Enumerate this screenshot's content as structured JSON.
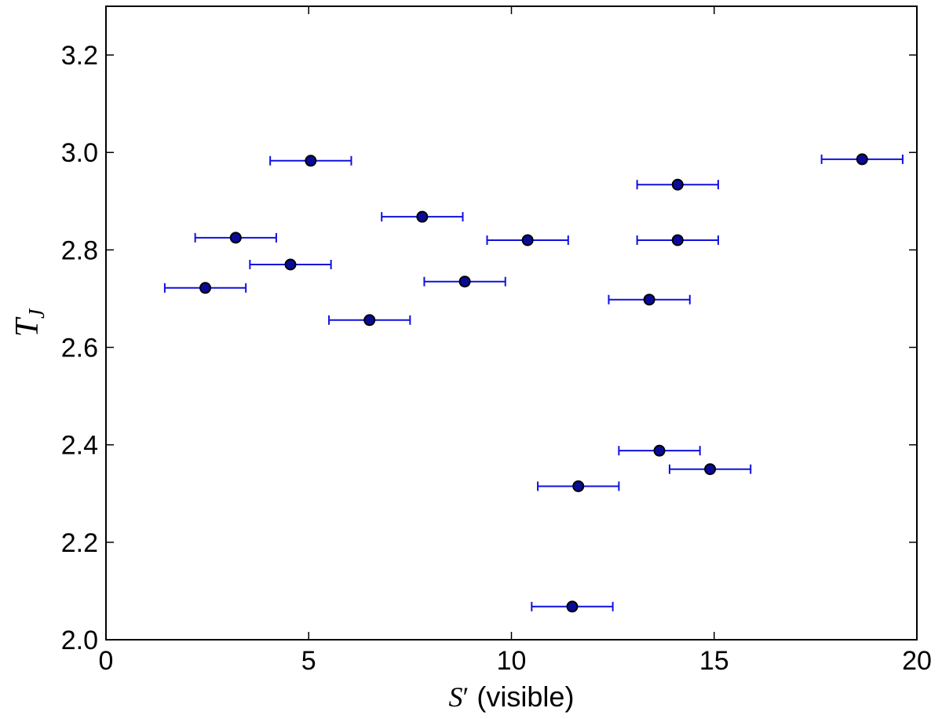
{
  "chart_data": {
    "type": "scatter",
    "title": "",
    "xlabel": {
      "symbol": "S",
      "prime": "′",
      "suffix": " (visible)"
    },
    "ylabel": {
      "symbol": "T",
      "subscript": "J"
    },
    "xlim": [
      0,
      20
    ],
    "ylim": [
      2.0,
      3.3
    ],
    "xticks": [
      0,
      5,
      10,
      15,
      20
    ],
    "xtick_labels": [
      "0",
      "5",
      "10",
      "15",
      "20"
    ],
    "yticks": [
      2.0,
      2.2,
      2.4,
      2.6,
      2.8,
      3.0,
      3.2
    ],
    "ytick_labels": [
      "2.0",
      "2.2",
      "2.4",
      "2.6",
      "2.8",
      "3.0",
      "3.2"
    ],
    "grid": false,
    "x_error": 1.0,
    "points": [
      {
        "x": 2.45,
        "y": 2.722
      },
      {
        "x": 3.2,
        "y": 2.825
      },
      {
        "x": 4.55,
        "y": 2.77
      },
      {
        "x": 5.05,
        "y": 2.983
      },
      {
        "x": 6.5,
        "y": 2.656
      },
      {
        "x": 7.8,
        "y": 2.868
      },
      {
        "x": 8.85,
        "y": 2.735
      },
      {
        "x": 10.4,
        "y": 2.82
      },
      {
        "x": 11.5,
        "y": 2.068
      },
      {
        "x": 11.65,
        "y": 2.315
      },
      {
        "x": 13.4,
        "y": 2.698
      },
      {
        "x": 13.65,
        "y": 2.388
      },
      {
        "x": 14.1,
        "y": 2.934
      },
      {
        "x": 14.1,
        "y": 2.82
      },
      {
        "x": 14.9,
        "y": 2.35
      },
      {
        "x": 18.65,
        "y": 2.986
      }
    ],
    "colors": {
      "errorbar": "#1010e0",
      "marker": "#0a0a9a",
      "marker_edge": "#000000",
      "axes": "#000000"
    }
  }
}
